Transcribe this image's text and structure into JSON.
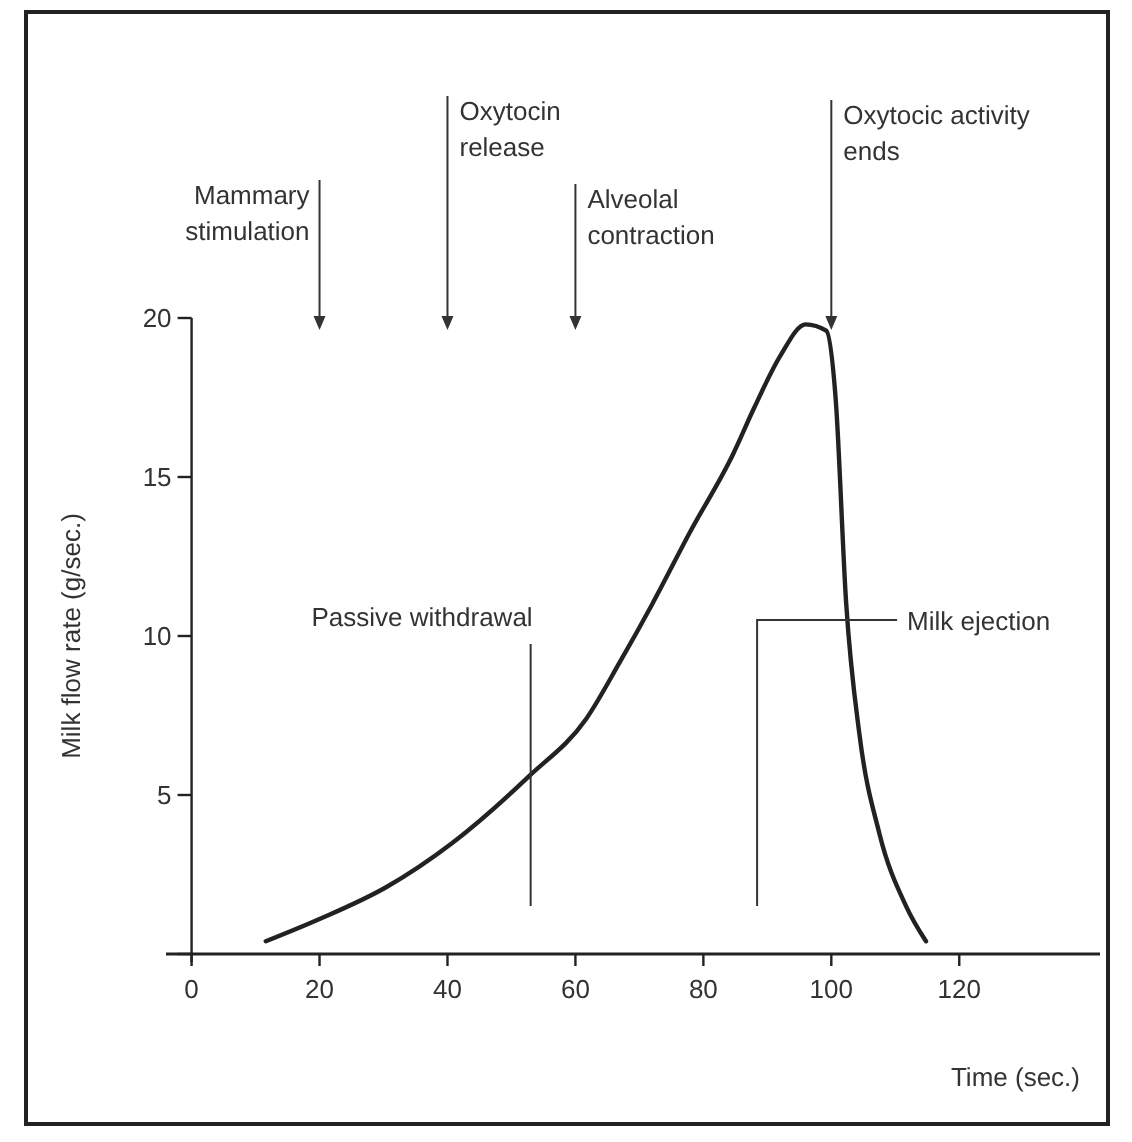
{
  "chart_data": {
    "type": "line",
    "xlabel": "Time (sec.)",
    "ylabel": "Milk flow rate (g/sec.)",
    "xlim": [
      -4,
      142
    ],
    "ylim": [
      0,
      20
    ],
    "xticks": [
      0,
      20,
      40,
      60,
      80,
      100,
      120
    ],
    "yticks": [
      {
        "value": 0,
        "label": null
      },
      5,
      10,
      15,
      20
    ],
    "grid": false,
    "marker": "none",
    "line_style": "solid",
    "series": [
      {
        "color": "#222222",
        "x": [
          11.6,
          20,
          30.4,
          40.8,
          52.8,
          61.7,
          67,
          72,
          78,
          84.6,
          88,
          92,
          96,
          99.2,
          100.7,
          102.3,
          104.4,
          107.5,
          111.7,
          114.8
        ],
        "values": [
          0.4,
          1.1,
          2.1,
          3.5,
          5.6,
          7.4,
          9.2,
          11.0,
          13.3,
          15.7,
          17.2,
          18.8,
          19.8,
          19.6,
          17.4,
          11.1,
          6.9,
          3.8,
          1.5,
          0.4
        ]
      }
    ],
    "ref_lines": [
      {
        "axis": "x",
        "value": 20,
        "label": "Mammary\nstimulation"
      },
      {
        "axis": "x",
        "value": 40,
        "label": "Oxytocin\nrelease"
      },
      {
        "axis": "x",
        "value": 60,
        "label": "Alveolal\ncontraction"
      },
      {
        "axis": "x",
        "value": 100,
        "label": "Oxytocic activity\nends"
      },
      {
        "axis": "x",
        "value": 53,
        "label": "Passive withdrawal"
      },
      {
        "axis": "x",
        "value": 88.4,
        "label": "Milk ejection"
      }
    ]
  }
}
